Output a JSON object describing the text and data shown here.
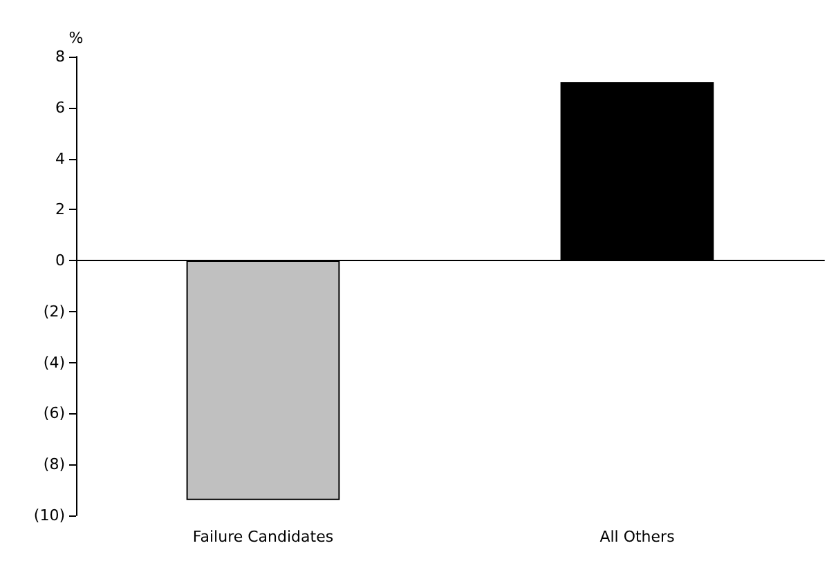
{
  "chart_data": {
    "type": "bar",
    "ylabel": "%",
    "categories": [
      "Failure Candidates",
      "All Others"
    ],
    "values": [
      -9.4,
      7.0
    ],
    "colors": [
      "#c0c0c0",
      "#000000"
    ],
    "ylim": [
      -10,
      8
    ],
    "yticks": [
      {
        "value": -10,
        "label": "(10)"
      },
      {
        "value": -8,
        "label": "(8)"
      },
      {
        "value": -6,
        "label": "(6)"
      },
      {
        "value": -4,
        "label": "(4)"
      },
      {
        "value": -2,
        "label": "(2)"
      },
      0,
      2,
      4,
      6,
      8
    ]
  }
}
